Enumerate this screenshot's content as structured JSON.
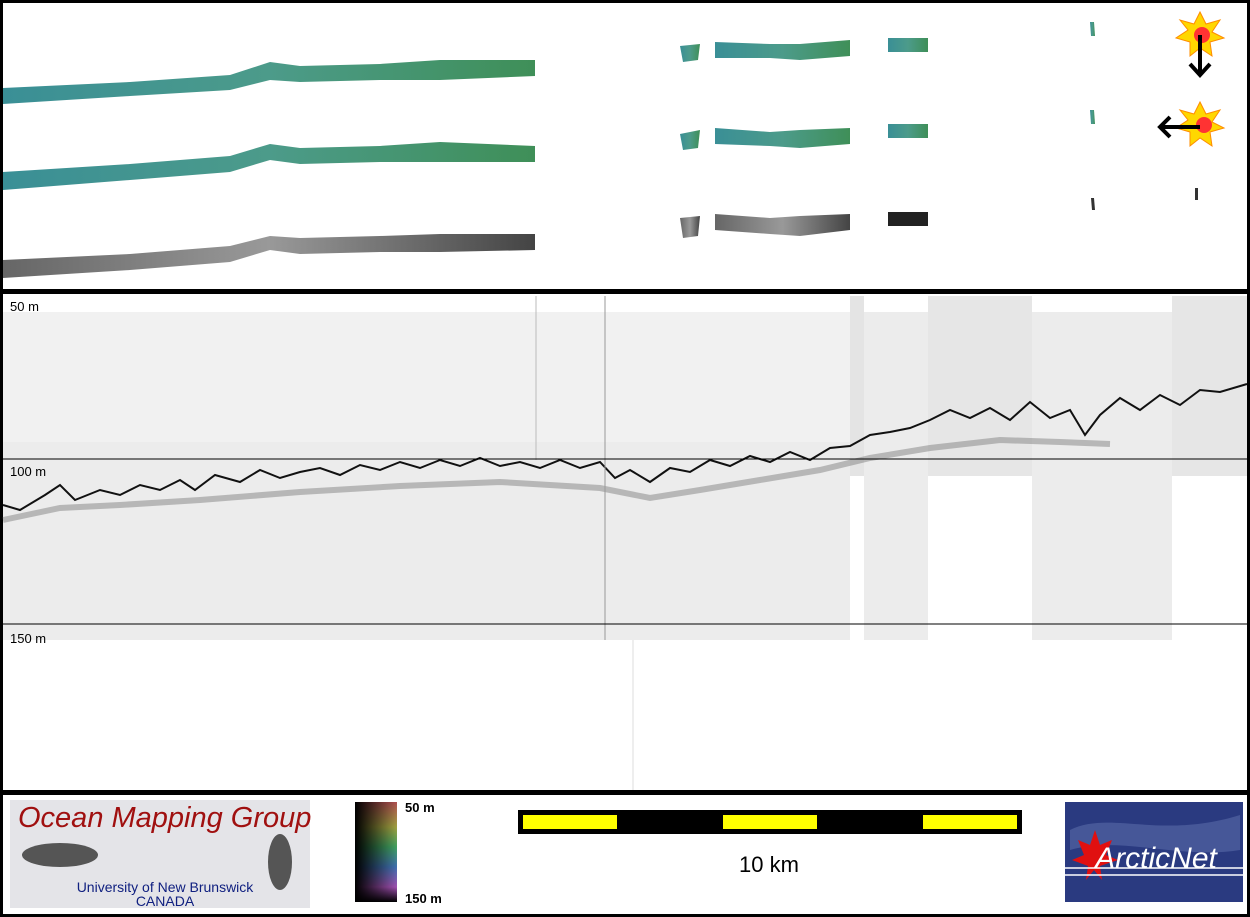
{
  "profile": {
    "depth_labels": [
      "50 m",
      "100 m",
      "150 m"
    ]
  },
  "legend": {
    "color_scale": {
      "top": "50 m",
      "bottom": "150 m"
    },
    "scale_bar": "10 km"
  },
  "logos": {
    "ocean_mapping": {
      "title": "Ocean Mapping Group",
      "university": "University of New Brunswick",
      "country": "CANADA"
    },
    "arcticnet": "ArcticNet"
  }
}
